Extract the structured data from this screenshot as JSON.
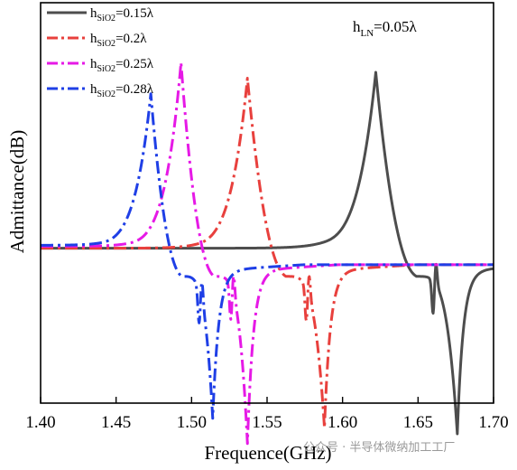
{
  "chart_data": {
    "type": "line",
    "title": "",
    "xlabel": "Frequence(GHz)",
    "ylabel": "Admittance(dB)",
    "xlim": [
      1.4,
      1.7
    ],
    "y_ticks_shown": false,
    "x_ticks": [
      "1.40",
      "1.45",
      "1.50",
      "1.55",
      "1.60",
      "1.65",
      "1.70"
    ],
    "grid": false,
    "legend_placement": "top-left",
    "annotation": {
      "base": "h",
      "sub": "LN",
      "rest": "=0.05λ"
    },
    "series": [
      {
        "legend": {
          "base": "h",
          "sub": "SiO2",
          "rest": "=0.15λ"
        },
        "color": "#4d4d4d",
        "dash": "solid",
        "fr": 1.622,
        "fa": 1.676,
        "base": 0.025,
        "peak": 0.93,
        "min": -0.93,
        "notch_f": 1.66
      },
      {
        "legend": {
          "base": "h",
          "sub": "SiO2",
          "rest": "=0.2λ"
        },
        "color": "#e8403d",
        "dash": "dashdot",
        "fr": 1.537,
        "fa": 1.588,
        "base": 0.025,
        "peak": 0.9,
        "min": -0.9,
        "notch_f": 1.576
      },
      {
        "legend": {
          "base": "h",
          "sub": "SiO2",
          "rest": "=0.25λ"
        },
        "color": "#e619e6",
        "dash": "dashdot",
        "fr": 1.493,
        "fa": 1.537,
        "base": 0.035,
        "peak": 0.98,
        "min": -0.98,
        "notch_f": 1.526
      },
      {
        "legend": {
          "base": "h",
          "sub": "SiO2",
          "rest": "=0.28λ"
        },
        "color": "#1f3fe6",
        "dash": "dashdot",
        "fr": 1.473,
        "fa": 1.514,
        "base": 0.04,
        "peak": 0.82,
        "min": -0.85,
        "notch_f": 1.505
      }
    ]
  },
  "watermark": "公众号 · 半导体微纳加工工厂"
}
